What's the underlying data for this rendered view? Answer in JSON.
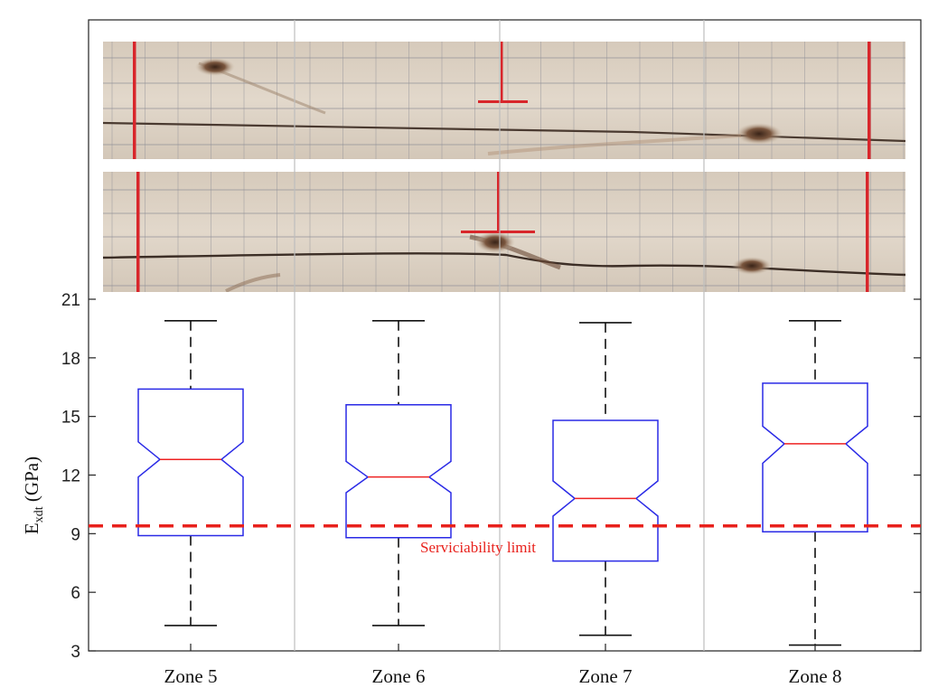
{
  "chart_data": {
    "type": "boxplot",
    "title": "",
    "xlabel": "",
    "ylabel": "E",
    "ylabel_subscript": "xdt",
    "ylabel_suffix": " (GPa)",
    "ylim": [
      3,
      21
    ],
    "yticks": [
      3,
      6,
      9,
      12,
      15,
      18,
      21
    ],
    "grid": false,
    "categories": [
      "Zone 5",
      "Zone 6",
      "Zone 7",
      "Zone 8"
    ],
    "boxes": [
      {
        "whisker_low": 4.3,
        "q1": 8.9,
        "notch_low": 11.9,
        "median": 12.8,
        "notch_high": 13.7,
        "q3": 16.4,
        "whisker_high": 19.9
      },
      {
        "whisker_low": 4.3,
        "q1": 8.8,
        "notch_low": 11.1,
        "median": 11.9,
        "notch_high": 12.7,
        "q3": 15.6,
        "whisker_high": 19.9
      },
      {
        "whisker_low": 3.8,
        "q1": 7.6,
        "notch_low": 9.9,
        "median": 10.8,
        "notch_high": 11.7,
        "q3": 14.8,
        "whisker_high": 19.8
      },
      {
        "whisker_low": 3.3,
        "q1": 9.1,
        "notch_low": 12.6,
        "median": 13.6,
        "notch_high": 14.5,
        "q3": 16.7,
        "whisker_high": 19.9
      }
    ],
    "reference_line": {
      "value": 9.4,
      "label": "Serviciability limit",
      "color": "#e8211c",
      "style": "dashed"
    },
    "colors": {
      "box": "#2a2ae6",
      "median": "#ee2222",
      "whisker": "#111111",
      "zone_divider": "#bdbdbd"
    }
  },
  "photo": {
    "kind": "timber-specimen-photographs",
    "strips": 2,
    "colors": {
      "wood": "#ddd2c4",
      "grid_line": "#8f8f97",
      "red_mark": "#d8262b",
      "knot": "#6b4a35"
    }
  }
}
